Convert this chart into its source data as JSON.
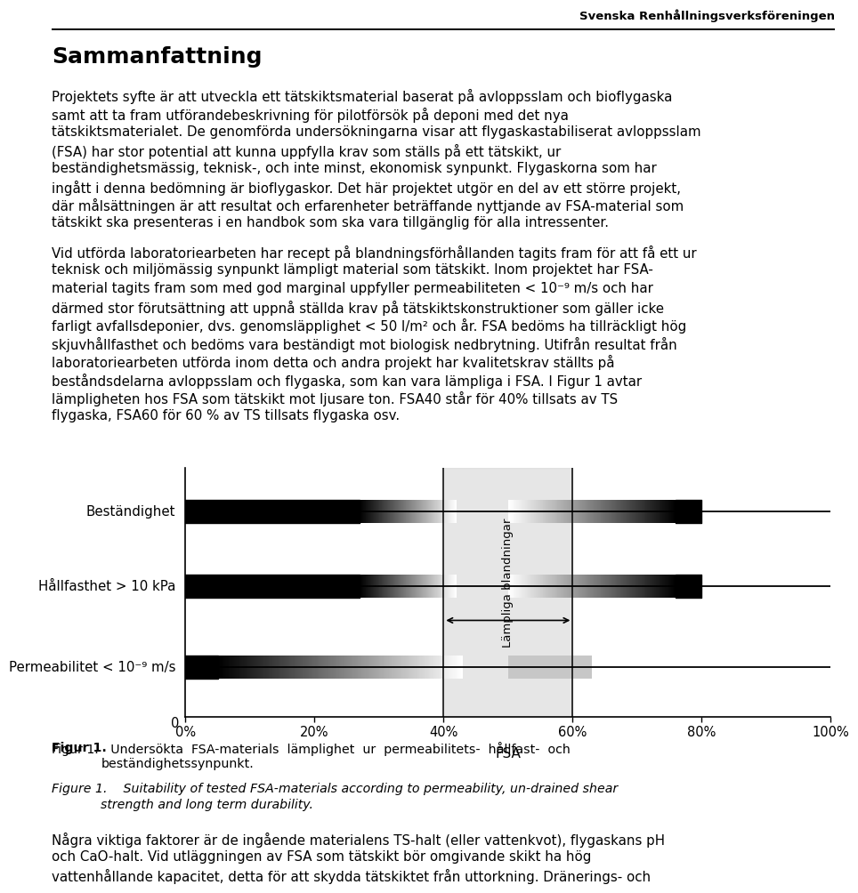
{
  "header_text": "Svenska Renhållningsverksföreningen",
  "title": "Sammanfattning",
  "para1_lines": [
    "Projektets syfte är att utveckla ett tätskiktsmaterial baserat på avloppsslam och bioflygaska",
    "samt att ta fram utförandebeskrivning för pilotförsök på deponi med det nya",
    "tätskiktsmaterialet. De genomförda undersökningarna visar att flygaskastabiliserat avloppsslam",
    "(FSA) har stor potential att kunna uppfylla krav som ställs på ett tätskikt, ur",
    "beständighetsmässig, teknisk-, och inte minst, ekonomisk synpunkt. Flygaskorna som har",
    "ingått i denna bedömning är bioflygaskor. Det här projektet utgör en del av ett större projekt,",
    "där målsättningen är att resultat och erfarenheter beträffande nyttjande av FSA-material som",
    "tätskikt ska presenteras i en handbok som ska vara tillgänglig för alla intressenter."
  ],
  "para2_lines": [
    "Vid utförda laboratoriearbeten har recept på blandningsförhållanden tagits fram för att få ett ur",
    "teknisk och miljömässig synpunkt lämpligt material som tätskikt. Inom projektet har FSA-",
    "material tagits fram som med god marginal uppfyller permeabiliteten < 10⁻⁹ m/s och har",
    "därmed stor förutsättning att uppnå ställda krav på tätskiktskonstruktioner som gäller icke",
    "farligt avfallsdeponier, dvs. genomsläpplighet < 50 l/m² och år. FSA bedöms ha tillräckligt hög",
    "skjuvhållfasthet och bedöms vara beständigt mot biologisk nedbrytning. Utifrån resultat från",
    "laboratoriearbeten utförda inom detta och andra projekt har kvalitetskrav ställts på",
    "beståndsdelarna avloppsslam och flygaska, som kan vara lämpliga i FSA. I Figur 1 avtar",
    "lämpligheten hos FSA som tätskikt mot ljusare ton. FSA40 står för 40% tillsats av TS",
    "flygaska, FSA60 för 60 % av TS tillsats flygaska osv."
  ],
  "fig_cap1_label": "Figur 1.",
  "fig_cap1_text": "Undersökta  FSA-materials  lämplighet  ur  permeabilitets-  hållfast-  och",
  "fig_cap1_text2": "beständighetssynpunkt.",
  "fig_cap2_label": "Figure 1.",
  "fig_cap2_text": "Suitability of tested FSA-materials according to permeability, un-drained shear",
  "fig_cap2_text2": "strength and long term durability.",
  "para3_lines": [
    "Några viktiga faktorer är de ingående materialens TS-halt (eller vattenkvot), flygaskans pH",
    "och CaO-halt. Vid utläggningen av FSA som tätskikt bör omgivande skikt ha hög",
    "vattenhållande kapacitet, detta för att skydda tätskiktet från uttorkning. Dränerings- och"
  ],
  "row_labels": [
    "Beständighet",
    "Hållfasthet > 10 kPa",
    "Permeabilitet < 10⁻⁹ m/s"
  ],
  "xlabel": "FSA",
  "xtick_labels": [
    "0%",
    "20%",
    "40%",
    "60%",
    "80%",
    "100%"
  ],
  "xtick_vals": [
    0.0,
    0.2,
    0.4,
    0.6,
    0.8,
    1.0
  ],
  "lamplinga_label": "Lämpliga blandningar",
  "background_color": "#ffffff"
}
